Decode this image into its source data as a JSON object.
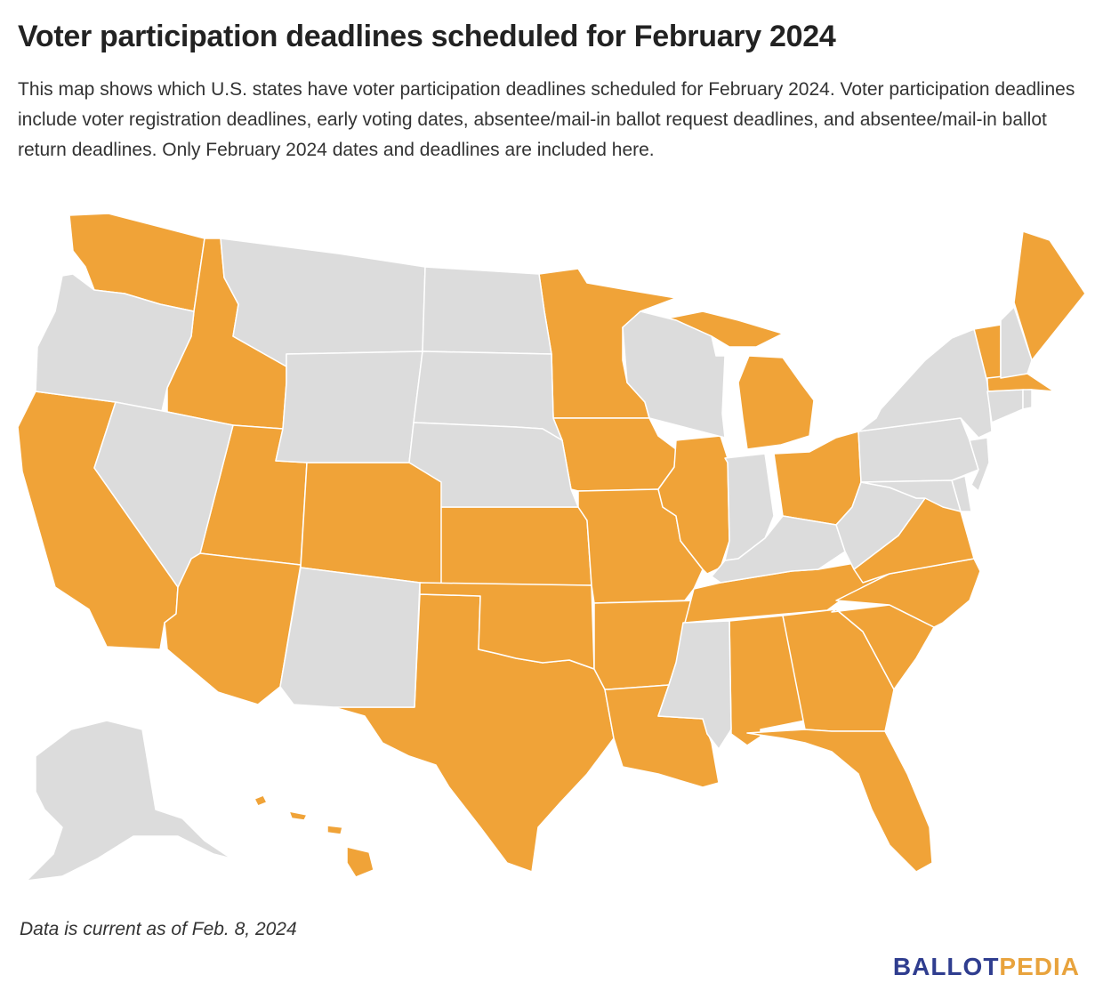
{
  "header": {
    "title": "Voter participation deadlines scheduled for February 2024",
    "subtitle": "This map shows which U.S. states have voter participation deadlines scheduled for February 2024. Voter participation deadlines include voter registration deadlines, early voting dates, absentee/mail-in ballot request deadlines, and absentee/mail-in ballot return deadlines. Only February 2024 dates and deadlines are included here."
  },
  "footer": {
    "note": "Data is current as of Feb. 8, 2024",
    "logo_part1": "BALLOT",
    "logo_part2": "PEDIA"
  },
  "colors": {
    "highlight": "#f0a338",
    "other": "#dcdcdc",
    "border": "#ffffff",
    "logo_blue": "#2f3d8f",
    "logo_gold": "#e8a33d"
  },
  "map": {
    "highlighted_states": [
      "WA",
      "ID",
      "CA",
      "UT",
      "AZ",
      "CO",
      "TX",
      "KS",
      "OK",
      "MN",
      "IA",
      "MO",
      "AR",
      "LA",
      "IL",
      "MI",
      "OH",
      "TN",
      "AL",
      "GA",
      "SC",
      "NC",
      "VA",
      "FL",
      "ME",
      "VT",
      "MA",
      "HI"
    ],
    "other_states": [
      "OR",
      "NV",
      "MT",
      "WY",
      "ND",
      "SD",
      "NE",
      "NM",
      "WI",
      "IN",
      "KY",
      "WV",
      "PA",
      "NY",
      "NH",
      "CT",
      "RI",
      "NJ",
      "DE",
      "MD",
      "MS",
      "AK"
    ]
  }
}
